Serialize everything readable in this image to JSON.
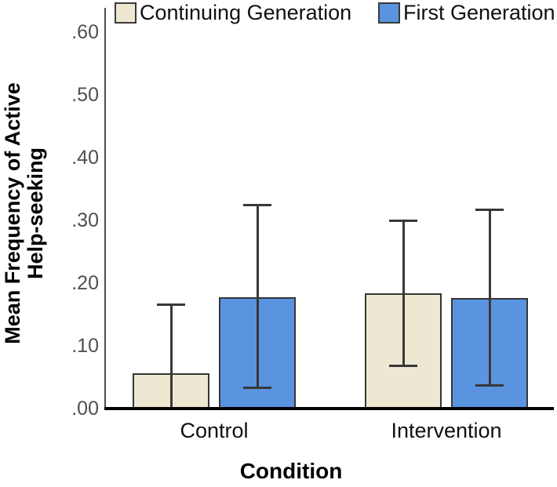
{
  "chart_data": {
    "type": "bar",
    "title": "",
    "xlabel": "Condition",
    "ylabel": "Mean Frequency of Active Help-seeking",
    "ylabel_lines": [
      "Mean Frequency of Active",
      "Help-seeking"
    ],
    "categories": [
      "Control",
      "Intervention"
    ],
    "series": [
      {
        "name": "Continuing Generation",
        "color": "#EEE8D2",
        "values": [
          0.056,
          0.184
        ],
        "error_upper": [
          0.166,
          0.3
        ],
        "error_lower": [
          null,
          0.068
        ]
      },
      {
        "name": "First Generation",
        "color": "#5A94E0",
        "values": [
          0.178,
          0.176
        ],
        "error_upper": [
          0.325,
          0.317
        ],
        "error_lower": [
          0.032,
          0.036
        ]
      }
    ],
    "yticks": [
      ".00",
      ".10",
      ".20",
      ".30",
      ".40",
      ".50",
      ".60"
    ],
    "ylim": [
      0,
      0.63
    ],
    "grid": false,
    "legend_position": "top",
    "error_bars": true,
    "colors": {
      "axis": "#4d4d4d",
      "baseline": "#000000",
      "error_bar": "#383838",
      "tick_label": "#4f4f4f",
      "bar_border": "#363636",
      "background": "#ffffff"
    }
  }
}
